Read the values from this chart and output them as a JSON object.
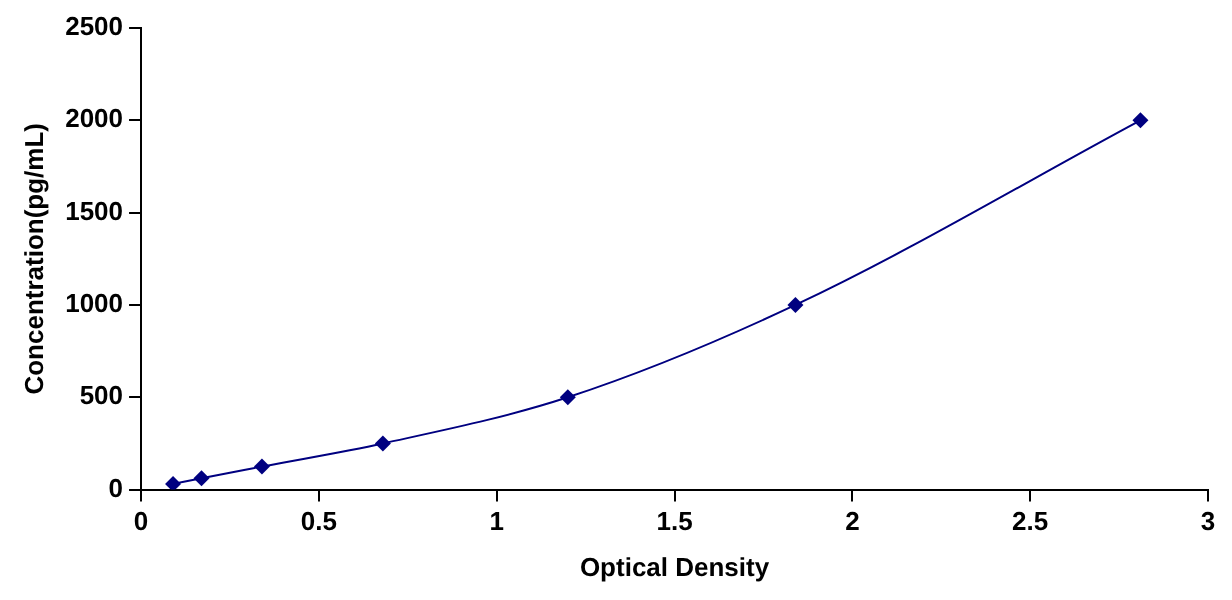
{
  "chart_data": {
    "type": "line",
    "xlabel": "Optical Density",
    "ylabel": "Concentration(pg/mL)",
    "x": [
      0.09,
      0.17,
      0.34,
      0.68,
      1.2,
      1.84,
      2.81
    ],
    "series": [
      {
        "color": "#000080",
        "values": [
          31,
          62,
          125,
          250,
          500,
          1000,
          2000
        ]
      }
    ],
    "xlim": [
      0,
      3
    ],
    "xticks": [
      0,
      0.5,
      1,
      1.5,
      2,
      2.5,
      3
    ],
    "ylim": [
      0,
      2500
    ],
    "yticks": [
      0,
      500,
      1000,
      1500,
      2000,
      2500
    ],
    "grid": false,
    "legend": false,
    "marker": "diamond",
    "line_style": "solid"
  }
}
